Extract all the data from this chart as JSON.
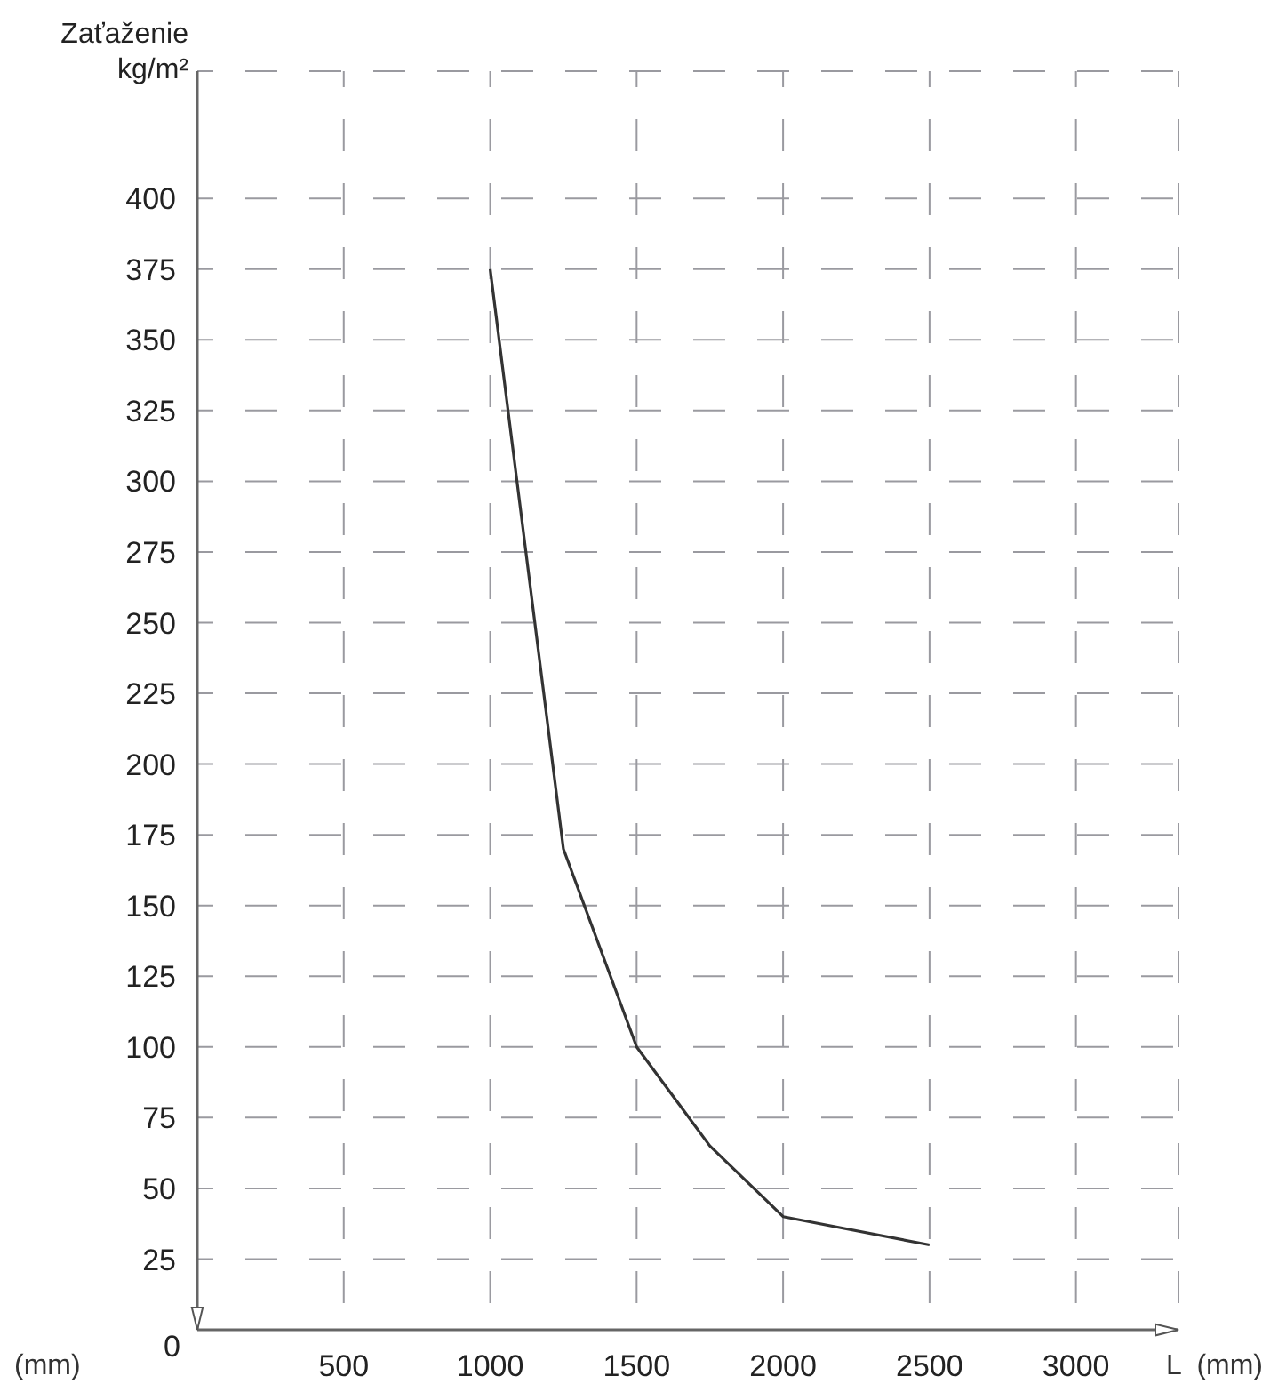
{
  "chart_data": {
    "type": "line",
    "xlabel": "L  (mm)",
    "ylabel": "Zaťaženie kg/m²",
    "annotations": [
      "(mm)"
    ],
    "x": [
      1000,
      1250,
      1500,
      1750,
      2000,
      2500
    ],
    "series": [
      {
        "color": "#333333",
        "values": [
          375,
          170,
          100,
          65,
          40,
          30
        ]
      }
    ],
    "xlim": [
      0,
      3350
    ],
    "xticks": [
      500,
      1000,
      1500,
      2000,
      2500,
      3000
    ],
    "ylim": [
      0,
      445
    ],
    "yticks": [
      0,
      25,
      50,
      75,
      100,
      125,
      150,
      175,
      200,
      225,
      250,
      275,
      300,
      325,
      350,
      375,
      400
    ],
    "grid": true,
    "line_style": "solid",
    "marker": "none",
    "legend": false
  }
}
